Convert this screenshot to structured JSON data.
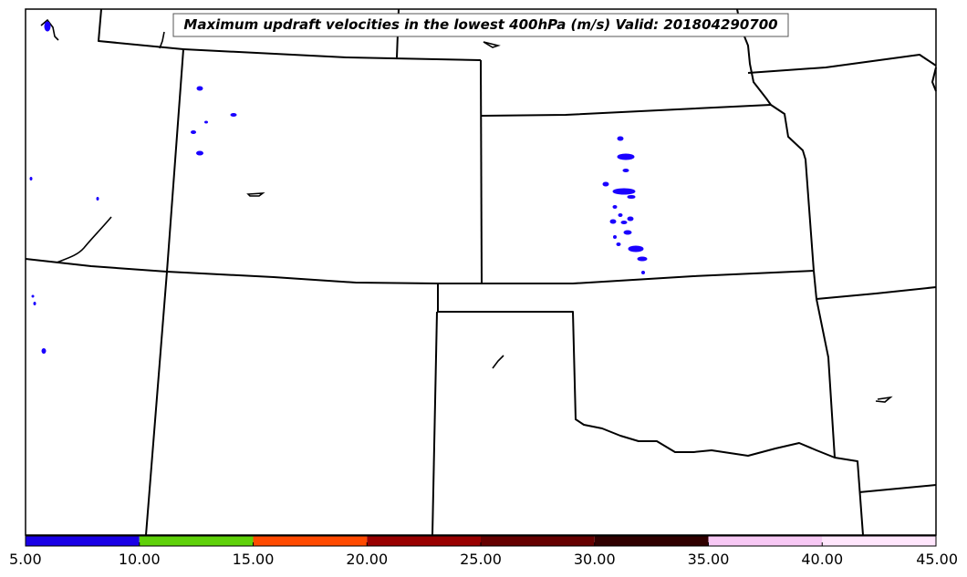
{
  "map": {
    "title": "Maximum updraft velocities in the lowest 400hPa (m/s) Valid: 201804290700",
    "variable": "maximum updraft velocity",
    "units": "m/s",
    "cell_color": "#1a00ff"
  },
  "colorbar": {
    "tick_labels": [
      "5.00",
      "10.00",
      "15.00",
      "20.00",
      "25.00",
      "30.00",
      "35.00",
      "40.00",
      "45.00"
    ],
    "bins": [
      {
        "min": 5,
        "max": 10,
        "color": "#1a00e6"
      },
      {
        "min": 10,
        "max": 15,
        "color": "#5fd10a"
      },
      {
        "min": 15,
        "max": 20,
        "color": "#ff4a00"
      },
      {
        "min": 20,
        "max": 25,
        "color": "#990000"
      },
      {
        "min": 25,
        "max": 30,
        "color": "#660000"
      },
      {
        "min": 30,
        "max": 35,
        "color": "#300000"
      },
      {
        "min": 35,
        "max": 40,
        "color": "#f7c8f4"
      },
      {
        "min": 40,
        "max": 45,
        "color": "#ffe6fc"
      }
    ]
  }
}
